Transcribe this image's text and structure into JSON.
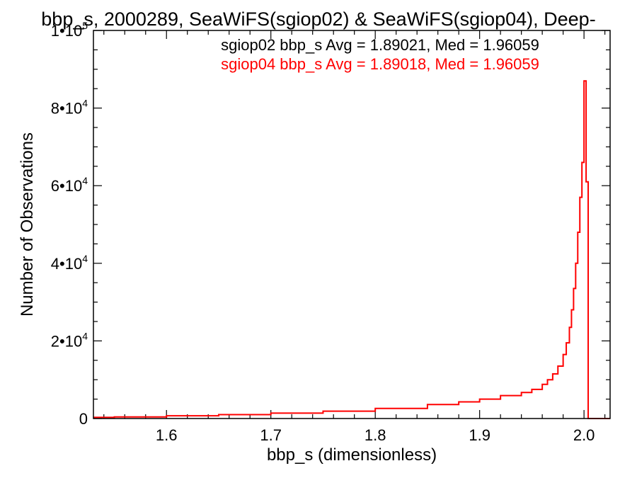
{
  "chart_data": {
    "type": "line",
    "title": "bbp_s, 2000289, SeaWiFS(sgiop02) & SeaWiFS(sgiop04), Deep-",
    "xlabel": "bbp_s (dimensionless)",
    "ylabel": "Number of Observations",
    "xlim": [
      1.53,
      2.025
    ],
    "ylim": [
      0,
      100000
    ],
    "x_ticks": [
      1.6,
      1.7,
      1.8,
      1.9,
      2.0
    ],
    "x_tick_labels": [
      "1.6",
      "1.7",
      "1.8",
      "1.9",
      "2.0"
    ],
    "y_ticks": [
      0,
      20000,
      40000,
      60000,
      80000,
      100000
    ],
    "y_tick_labels": [
      {
        "base": "0",
        "exp": ""
      },
      {
        "base": "2•10",
        "exp": "4"
      },
      {
        "base": "4•10",
        "exp": "4"
      },
      {
        "base": "6•10",
        "exp": "4"
      },
      {
        "base": "8•10",
        "exp": "4"
      },
      {
        "base": "1•10",
        "exp": "5"
      }
    ],
    "grid": false,
    "legend": [
      {
        "text": "sgiop02 bbp_s Avg = 1.89021, Med = 1.96059",
        "color": "#000000"
      },
      {
        "text": "sgiop04 bbp_s Avg = 1.89018, Med = 1.96059",
        "color": "#ff0000"
      }
    ],
    "series": [
      {
        "color": "#ff0000",
        "x": [
          1.53,
          1.55,
          1.6,
          1.65,
          1.7,
          1.75,
          1.8,
          1.85,
          1.88,
          1.9,
          1.92,
          1.94,
          1.95,
          1.96,
          1.965,
          1.97,
          1.975,
          1.98,
          1.983,
          1.986,
          1.988,
          1.99,
          1.992,
          1.994,
          1.996,
          1.998,
          2.0,
          2.002,
          2.004,
          2.025
        ],
        "y": [
          300,
          400,
          700,
          1000,
          1400,
          1900,
          2600,
          3600,
          4300,
          5000,
          5900,
          6700,
          7500,
          8800,
          10000,
          11500,
          13500,
          16500,
          19500,
          23500,
          28000,
          33500,
          40000,
          48000,
          57000,
          66000,
          87000,
          61000,
          0,
          0
        ]
      }
    ]
  }
}
